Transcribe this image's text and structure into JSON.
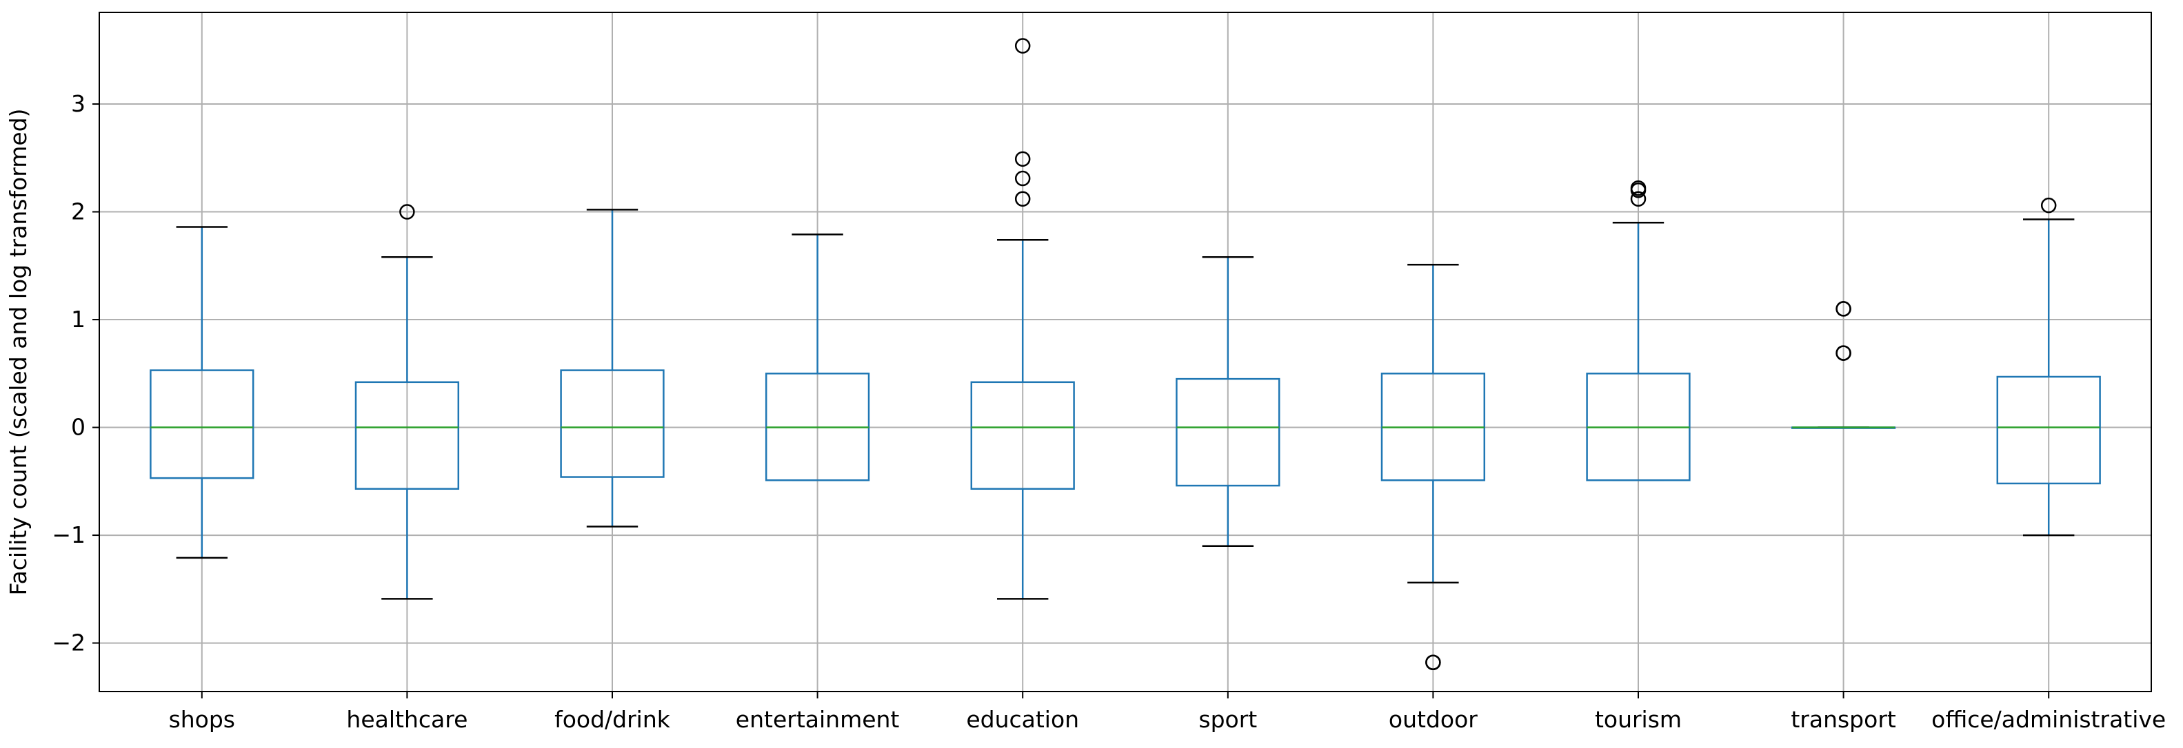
{
  "chart_data": {
    "type": "box",
    "title": "",
    "xlabel": "",
    "ylabel": "Facility count (scaled and log transformed)",
    "ylim": [
      -2.45,
      3.85
    ],
    "yticks": [
      -2,
      -1,
      0,
      1,
      2,
      3
    ],
    "ytick_labels": [
      "−2",
      "−1",
      "0",
      "1",
      "2",
      "3"
    ],
    "grid": true,
    "colors": {
      "box": "#1f77b4",
      "median": "#2ca02c",
      "cap": "#000000",
      "grid": "#b0b0b0"
    },
    "categories": [
      "shops",
      "healthcare",
      "food/drink",
      "entertainment",
      "education",
      "sport",
      "outdoor",
      "tourism",
      "transport",
      "office/administrative"
    ],
    "boxes": [
      {
        "whisker_low": -1.21,
        "q1": -0.47,
        "median": 0.0,
        "q3": 0.53,
        "whisker_high": 1.86,
        "outliers": []
      },
      {
        "whisker_low": -1.59,
        "q1": -0.57,
        "median": 0.0,
        "q3": 0.42,
        "whisker_high": 1.58,
        "outliers": [
          2.0
        ]
      },
      {
        "whisker_low": -0.92,
        "q1": -0.46,
        "median": 0.0,
        "q3": 0.53,
        "whisker_high": 2.02,
        "outliers": []
      },
      {
        "whisker_low": -0.49,
        "q1": -0.49,
        "median": 0.0,
        "q3": 0.5,
        "whisker_high": 1.79,
        "outliers": []
      },
      {
        "whisker_low": -1.59,
        "q1": -0.57,
        "median": 0.0,
        "q3": 0.42,
        "whisker_high": 1.74,
        "outliers": [
          2.12,
          2.31,
          2.49,
          3.54
        ]
      },
      {
        "whisker_low": -1.1,
        "q1": -0.54,
        "median": 0.0,
        "q3": 0.45,
        "whisker_high": 1.58,
        "outliers": []
      },
      {
        "whisker_low": -1.44,
        "q1": -0.49,
        "median": 0.0,
        "q3": 0.5,
        "whisker_high": 1.51,
        "outliers": [
          -2.18,
          -2.18
        ]
      },
      {
        "whisker_low": -0.49,
        "q1": -0.49,
        "median": 0.0,
        "q3": 0.5,
        "whisker_high": 1.9,
        "outliers": [
          2.12,
          2.2,
          2.22
        ]
      },
      {
        "whisker_low": 0.0,
        "q1": 0.0,
        "median": 0.0,
        "q3": 0.0,
        "whisker_high": 0.0,
        "outliers": [
          0.69,
          0.69,
          1.1,
          1.1
        ]
      },
      {
        "whisker_low": -1.0,
        "q1": -0.52,
        "median": 0.0,
        "q3": 0.47,
        "whisker_high": 1.93,
        "outliers": [
          2.06
        ]
      }
    ]
  }
}
